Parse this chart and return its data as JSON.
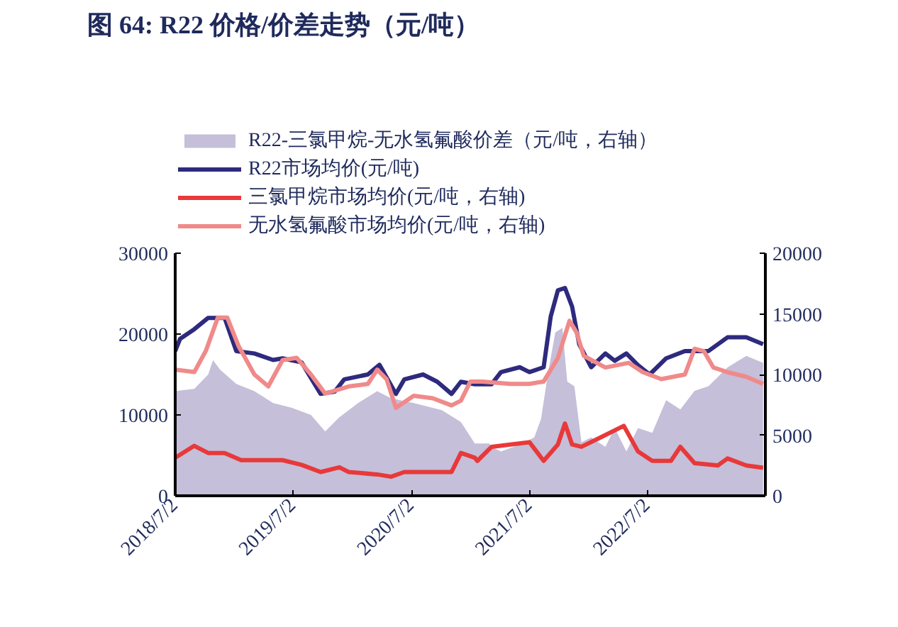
{
  "chart_data": {
    "type": "line",
    "title": "图 64: R22 价格/价差走势（元/吨）",
    "xlim": [
      "2018-07-02",
      "2023-07-02"
    ],
    "xticks": [
      {
        "value": "2018-07-02",
        "label": "2018/7/2"
      },
      {
        "value": "2019-07-02",
        "label": "2019/7/2"
      },
      {
        "value": "2020-07-02",
        "label": "2020/7/2"
      },
      {
        "value": "2021-07-02",
        "label": "2021/7/2"
      },
      {
        "value": "2022-07-02",
        "label": "2022/7/2"
      }
    ],
    "ylim": [
      0,
      30000
    ],
    "yticks": [
      0,
      10000,
      20000,
      30000
    ],
    "y2lim": [
      0,
      20000
    ],
    "y2ticks": [
      0,
      5000,
      10000,
      15000,
      20000
    ],
    "grid": false,
    "legend": "top",
    "series": [
      {
        "name": "R22-三氯甲烷-无水氢氟酸价差（元/吨，右轴）",
        "type": "area",
        "axis": "y2",
        "color": "#c5bfd9",
        "x": [
          "2018-07-02",
          "2018-08-30",
          "2018-10-12",
          "2018-10-27",
          "2018-11-18",
          "2019-01-07",
          "2019-03-04",
          "2019-05-01",
          "2019-06-28",
          "2019-08-26",
          "2019-10-09",
          "2019-11-22",
          "2020-01-19",
          "2020-03-18",
          "2020-04-30",
          "2020-07-09",
          "2020-10-04",
          "2020-12-02",
          "2021-01-14",
          "2021-02-28",
          "2021-03-07",
          "2021-04-05",
          "2021-06-02",
          "2021-07-17",
          "2021-08-07",
          "2021-08-29",
          "2021-09-20",
          "2021-10-12",
          "2021-10-27",
          "2021-11-18",
          "2021-12-10",
          "2022-01-09",
          "2022-02-22",
          "2022-03-23",
          "2022-04-28",
          "2022-06-03",
          "2022-07-17",
          "2022-08-29",
          "2022-10-12",
          "2022-11-25",
          "2023-01-07",
          "2023-03-07",
          "2023-05-04",
          "2023-06-25"
        ],
        "values": [
          8630,
          8820,
          10000,
          11180,
          10390,
          9220,
          8630,
          7650,
          7250,
          6670,
          5300,
          6470,
          7650,
          8630,
          8040,
          7650,
          7060,
          6080,
          4310,
          4310,
          4040,
          3650,
          4230,
          4810,
          6350,
          10190,
          13460,
          13850,
          9420,
          9040,
          4420,
          4810,
          4040,
          5580,
          3650,
          5580,
          5190,
          7880,
          7120,
          8650,
          9040,
          10580,
          11540,
          10960
        ]
      },
      {
        "name": "R22市场均价(元/吨)",
        "color": "#2e2a7e",
        "x": [
          "2018-07-02",
          "2018-07-17",
          "2018-08-30",
          "2018-10-12",
          "2018-12-02",
          "2019-01-07",
          "2019-03-04",
          "2019-05-01",
          "2019-05-30",
          "2019-07-28",
          "2019-09-25",
          "2019-11-08",
          "2019-12-07",
          "2020-02-18",
          "2020-03-25",
          "2020-05-15",
          "2020-06-10",
          "2020-08-07",
          "2020-09-20",
          "2020-11-03",
          "2020-12-02",
          "2021-01-14",
          "2021-03-07",
          "2021-04-05",
          "2021-06-02",
          "2021-07-02",
          "2021-08-15",
          "2021-09-06",
          "2021-09-28",
          "2021-10-20",
          "2021-11-11",
          "2021-12-03",
          "2022-01-09",
          "2022-02-22",
          "2022-03-23",
          "2022-04-28",
          "2022-06-03",
          "2022-07-09",
          "2022-08-29",
          "2022-10-26",
          "2023-01-07",
          "2023-03-07",
          "2023-05-04",
          "2023-06-25"
        ],
        "values": [
          17900,
          19400,
          20600,
          22000,
          22000,
          17900,
          17600,
          16800,
          17000,
          16500,
          12600,
          12900,
          14400,
          15000,
          16200,
          12600,
          14400,
          15000,
          14100,
          12600,
          14100,
          13800,
          13800,
          15300,
          15900,
          15300,
          15900,
          22200,
          25400,
          25700,
          23400,
          18750,
          15900,
          17600,
          16700,
          17600,
          16150,
          15000,
          17000,
          17900,
          17900,
          19600,
          19600,
          18750
        ]
      },
      {
        "name": "三氯甲烷市场均价(元/吨，右轴)",
        "axis": "y2",
        "color": "#e8393a",
        "x": [
          "2018-07-02",
          "2018-08-30",
          "2018-10-12",
          "2018-12-02",
          "2019-01-22",
          "2019-04-01",
          "2019-05-30",
          "2019-07-28",
          "2019-09-25",
          "2019-11-22",
          "2019-12-21",
          "2020-03-18",
          "2020-04-30",
          "2020-06-10",
          "2020-08-07",
          "2020-11-03",
          "2020-12-02",
          "2021-01-14",
          "2021-01-22",
          "2021-03-07",
          "2021-05-04",
          "2021-07-02",
          "2021-08-15",
          "2021-09-28",
          "2021-10-20",
          "2021-11-11",
          "2021-12-10",
          "2022-02-07",
          "2022-04-20",
          "2022-06-03",
          "2022-07-17",
          "2022-09-13",
          "2022-10-12",
          "2022-11-25",
          "2023-02-05",
          "2023-03-07",
          "2023-05-04",
          "2023-06-25"
        ],
        "values": [
          3140,
          4120,
          3530,
          3530,
          2940,
          2940,
          2940,
          2550,
          1960,
          2350,
          1960,
          1760,
          1570,
          1960,
          1960,
          1960,
          3530,
          3140,
          2880,
          4040,
          4230,
          4420,
          2880,
          4230,
          5960,
          4230,
          4040,
          4810,
          5770,
          3650,
          2880,
          2880,
          4040,
          2690,
          2500,
          3080,
          2500,
          2310
        ]
      },
      {
        "name": "无水氢氟酸市场均价(元/吨，右轴)",
        "axis": "y2",
        "color": "#f08a8a",
        "x": [
          "2018-07-02",
          "2018-08-30",
          "2018-10-05",
          "2018-11-11",
          "2018-12-10",
          "2019-01-14",
          "2019-03-04",
          "2019-04-16",
          "2019-05-30",
          "2019-07-13",
          "2019-08-26",
          "2019-10-09",
          "2019-12-21",
          "2020-02-18",
          "2020-03-18",
          "2020-04-16",
          "2020-05-15",
          "2020-07-09",
          "2020-09-06",
          "2020-11-03",
          "2020-12-02",
          "2020-12-31",
          "2021-02-06",
          "2021-05-04",
          "2021-07-02",
          "2021-08-15",
          "2021-09-28",
          "2021-11-03",
          "2021-11-25",
          "2021-12-17",
          "2022-02-22",
          "2022-05-05",
          "2022-06-18",
          "2022-08-14",
          "2022-10-26",
          "2022-11-25",
          "2022-12-24",
          "2023-01-22",
          "2023-03-07",
          "2023-05-04",
          "2023-06-25"
        ],
        "values": [
          10400,
          10200,
          11960,
          14700,
          14700,
          12350,
          10000,
          9020,
          11180,
          11370,
          10000,
          8430,
          9020,
          9220,
          10400,
          9610,
          7250,
          8240,
          8040,
          7450,
          7840,
          9410,
          9420,
          9230,
          9230,
          9420,
          11350,
          14420,
          13460,
          11540,
          10580,
          10960,
          10190,
          9620,
          10000,
          12120,
          11920,
          10580,
          10190,
          9810,
          9230
        ]
      }
    ]
  }
}
